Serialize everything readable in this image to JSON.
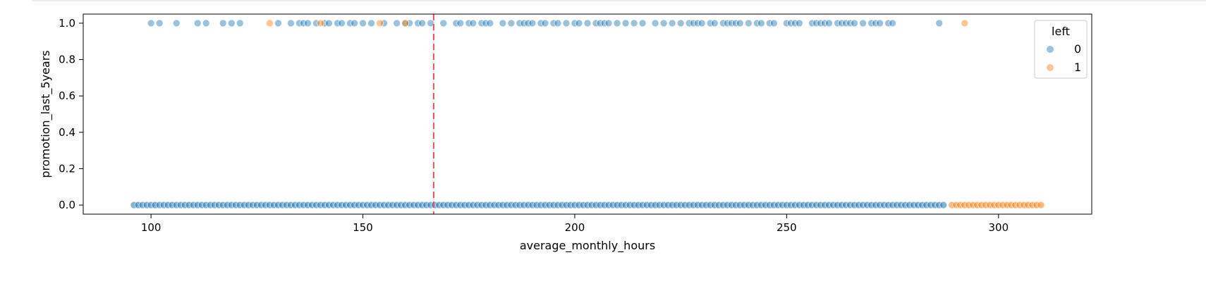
{
  "chart_data": {
    "type": "scatter",
    "xlabel": "average_monthly_hours",
    "ylabel": "promotion_last_5years",
    "xlim": [
      84,
      322
    ],
    "ylim": [
      -0.05,
      1.05
    ],
    "xticks": [
      100,
      150,
      200,
      250,
      300
    ],
    "xtick_labels": [
      "100",
      "150",
      "200",
      "250",
      "300"
    ],
    "yticks": [
      0.0,
      0.2,
      0.4,
      0.6,
      0.8,
      1.0
    ],
    "ytick_labels": [
      "0.0",
      "0.2",
      "0.4",
      "0.6",
      "0.8",
      "1.0"
    ],
    "grid": false,
    "reference_line": {
      "axis": "x",
      "value": 166.7,
      "style": "dashed",
      "color": "#ef5350"
    },
    "legend": {
      "title": "left",
      "placement": "top-right",
      "entries": [
        {
          "label": "0",
          "color": "#1f77b4"
        },
        {
          "label": "1",
          "color": "#ff7f0e"
        }
      ]
    },
    "series": [
      {
        "name": "0",
        "color": "#1f77b4",
        "y0_x_range": [
          96,
          287
        ],
        "y1_x": [
          100,
          102,
          106,
          111,
          113,
          117,
          119,
          121,
          130,
          133,
          135,
          136,
          137,
          139,
          141,
          142,
          144,
          145,
          147,
          148,
          150,
          152,
          155,
          158,
          160,
          161,
          163,
          164,
          166,
          169,
          172,
          173,
          175,
          176,
          178,
          179,
          180,
          183,
          185,
          187,
          188,
          189,
          190,
          192,
          193,
          195,
          196,
          198,
          200,
          201,
          203,
          205,
          206,
          207,
          208,
          210,
          212,
          214,
          216,
          219,
          221,
          223,
          225,
          227,
          228,
          229,
          230,
          232,
          233,
          235,
          236,
          237,
          238,
          239,
          241,
          243,
          244,
          246,
          247,
          250,
          251,
          252,
          253,
          256,
          257,
          258,
          259,
          260,
          262,
          263,
          264,
          265,
          266,
          268,
          270,
          271,
          272,
          274,
          275,
          286
        ]
      },
      {
        "name": "1",
        "color": "#ff7f0e",
        "y0_x_range": [
          289,
          310
        ],
        "y1_x": [
          128,
          140,
          154,
          160,
          292
        ]
      }
    ]
  }
}
